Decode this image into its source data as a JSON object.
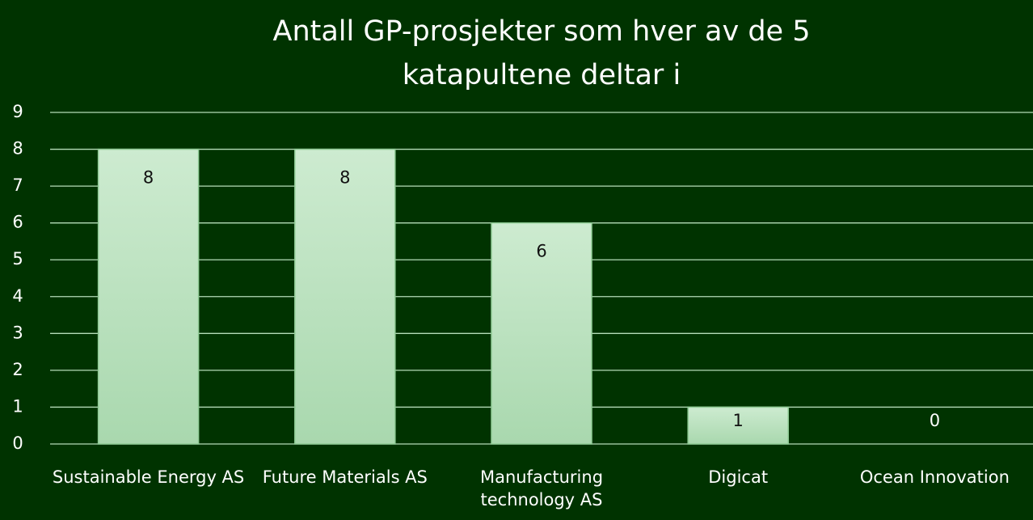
{
  "chart_data": {
    "type": "bar",
    "title": "Antall GP-prosjekter som hver av de 5 katapultene deltar i",
    "categories": [
      "Sustainable Energy AS",
      "Future Materials AS",
      "Manufacturing technology AS",
      "Digicat",
      "Ocean Innovation"
    ],
    "values": [
      8,
      8,
      6,
      1,
      0
    ],
    "color": "#bfe3c3",
    "ylim": [
      0,
      9
    ],
    "yticks": [
      0,
      1,
      2,
      3,
      4,
      5,
      6,
      7,
      8,
      9
    ],
    "grid": true
  }
}
